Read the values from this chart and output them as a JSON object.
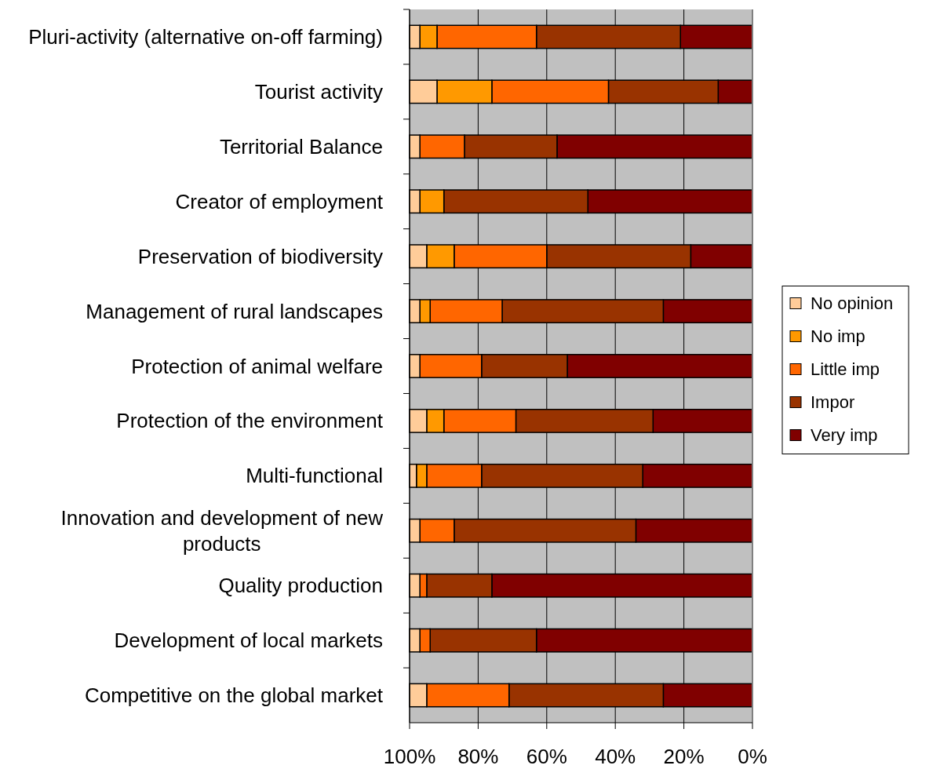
{
  "chart_data": {
    "type": "bar",
    "orientation": "horizontal",
    "stacked": true,
    "categories": [
      "Pluri-activity (alternative on-off farming)",
      "Tourist activity",
      "Territorial Balance",
      "Creator of employment",
      "Preservation of biodiversity",
      "Management of rural landscapes",
      "Protection of animal welfare",
      "Protection of the environment",
      "Multi-functional",
      "Innovation and development of new products",
      "Quality production",
      "Development of local markets",
      "Competitive on the global market"
    ],
    "series": [
      {
        "name": "Very imp",
        "color": "#800000",
        "values": [
          21,
          10,
          57,
          48,
          18,
          26,
          54,
          29,
          32,
          34,
          76,
          63,
          26
        ]
      },
      {
        "name": "Impor",
        "color": "#993300",
        "values": [
          42,
          32,
          27,
          42,
          42,
          47,
          25,
          40,
          47,
          53,
          19,
          31,
          45
        ]
      },
      {
        "name": "Little imp",
        "color": "#ff6600",
        "values": [
          29,
          34,
          13,
          0,
          27,
          21,
          18,
          21,
          16,
          10,
          2,
          3,
          24
        ]
      },
      {
        "name": "No imp",
        "color": "#ff9900",
        "values": [
          5,
          16,
          0,
          7,
          8,
          3,
          0,
          5,
          3,
          0,
          0,
          0,
          0
        ]
      },
      {
        "name": "No opinion",
        "color": "#ffcc99",
        "values": [
          3,
          8,
          3,
          3,
          5,
          3,
          3,
          5,
          2,
          3,
          3,
          3,
          5
        ]
      }
    ],
    "xlim": [
      100,
      0
    ],
    "xticks": [
      {
        "value": 100,
        "label": "100%"
      },
      {
        "value": 80,
        "label": "80%"
      },
      {
        "value": 60,
        "label": "60%"
      },
      {
        "value": 40,
        "label": "40%"
      },
      {
        "value": 20,
        "label": "20%"
      },
      {
        "value": 0,
        "label": "0%"
      }
    ],
    "grid": "x",
    "legend": "right"
  }
}
